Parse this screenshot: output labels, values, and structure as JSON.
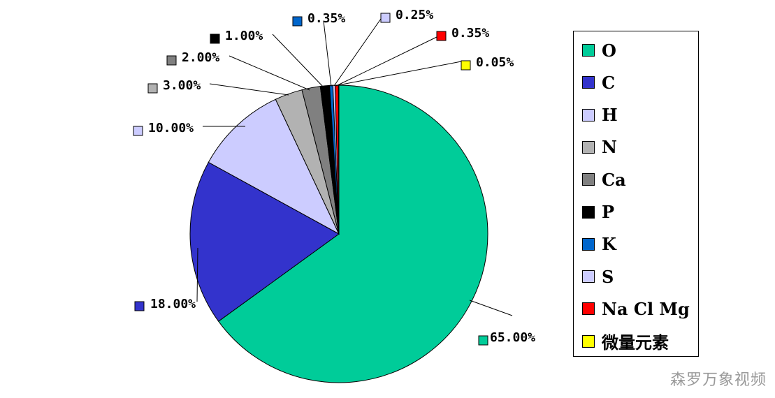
{
  "chart_data": {
    "type": "pie",
    "slices": [
      {
        "label": "O",
        "value": 65.0,
        "data_label": "65.00%",
        "color": "#00CC99"
      },
      {
        "label": "C",
        "value": 18.0,
        "data_label": "18.00%",
        "color": "#3333CC"
      },
      {
        "label": "H",
        "value": 10.0,
        "data_label": "10.00%",
        "color": "#CCCCFF"
      },
      {
        "label": "N",
        "value": 3.0,
        "data_label": "3.00%",
        "color": "#B2B2B2"
      },
      {
        "label": "Ca",
        "value": 2.0,
        "data_label": "2.00%",
        "color": "#808080"
      },
      {
        "label": "P",
        "value": 1.0,
        "data_label": "1.00%",
        "color": "#000000"
      },
      {
        "label": "K",
        "value": 0.35,
        "data_label": "0.35%",
        "color": "#0066CC"
      },
      {
        "label": "S",
        "value": 0.25,
        "data_label": "0.25%",
        "color": "#CCCCFF"
      },
      {
        "label": "Na Cl Mg",
        "value": 0.35,
        "data_label": "0.35%",
        "color": "#FF0000"
      },
      {
        "label": "微量元素",
        "value": 0.05,
        "data_label": "0.05%",
        "color": "#FFFF00"
      }
    ],
    "legend_position": "right"
  },
  "watermark": "森罗万象视频"
}
